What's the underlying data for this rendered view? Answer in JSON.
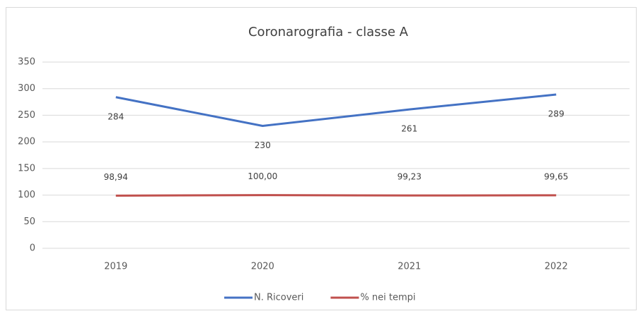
{
  "chart_data": {
    "type": "line",
    "title": "Coronarografia - classe A",
    "categories": [
      "2019",
      "2020",
      "2021",
      "2022"
    ],
    "series": [
      {
        "name": "N. Ricoveri",
        "color": "#4472c4",
        "values": [
          284,
          230,
          261,
          289
        ]
      },
      {
        "name": "% nei tempi",
        "color": "#c0504d",
        "values": [
          98.94,
          100,
          99.23,
          99.65
        ],
        "value_labels": [
          "98,94",
          "100,00",
          "99,23",
          "99,65"
        ]
      }
    ],
    "ylim": [
      0,
      350
    ],
    "yticks": [
      0,
      50,
      100,
      150,
      200,
      250,
      300,
      350
    ],
    "grid": true,
    "legend": "bottom"
  }
}
